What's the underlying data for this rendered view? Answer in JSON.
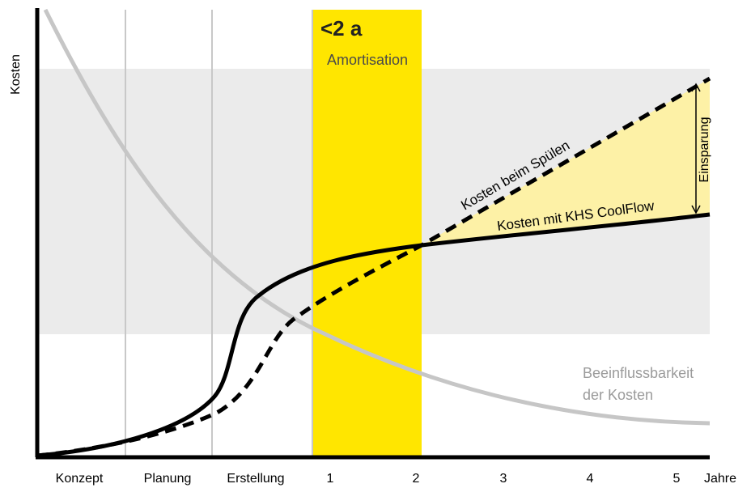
{
  "colors": {
    "background": "#ffffff",
    "band": "#ebebeb",
    "payback_highlight": "#ffe600",
    "savings_area": "#fdf1a6",
    "influence_curve": "#c6c6c6",
    "cost_lines": "#000000",
    "grid": "#c8c8c8",
    "influence_label": "#9b9b9b",
    "payback_text": "#4a4a4a"
  },
  "chart_data": {
    "type": "line",
    "ylabel": "Kosten",
    "x_unit_label": "Jahre",
    "categories": [
      "Konzept",
      "Planung",
      "Erstellung",
      "1",
      "2",
      "3",
      "4",
      "5"
    ],
    "payback": {
      "title": "<2 a",
      "subtitle": "Amortisation",
      "from": "1",
      "to": "2"
    },
    "annotations": {
      "dashed": "Kosten beim Spülen",
      "solid": "Kosten mit KHS CoolFlow",
      "savings": "Einsparung",
      "influence": [
        "Beeinflussbarkeit",
        "der Kosten"
      ]
    }
  }
}
